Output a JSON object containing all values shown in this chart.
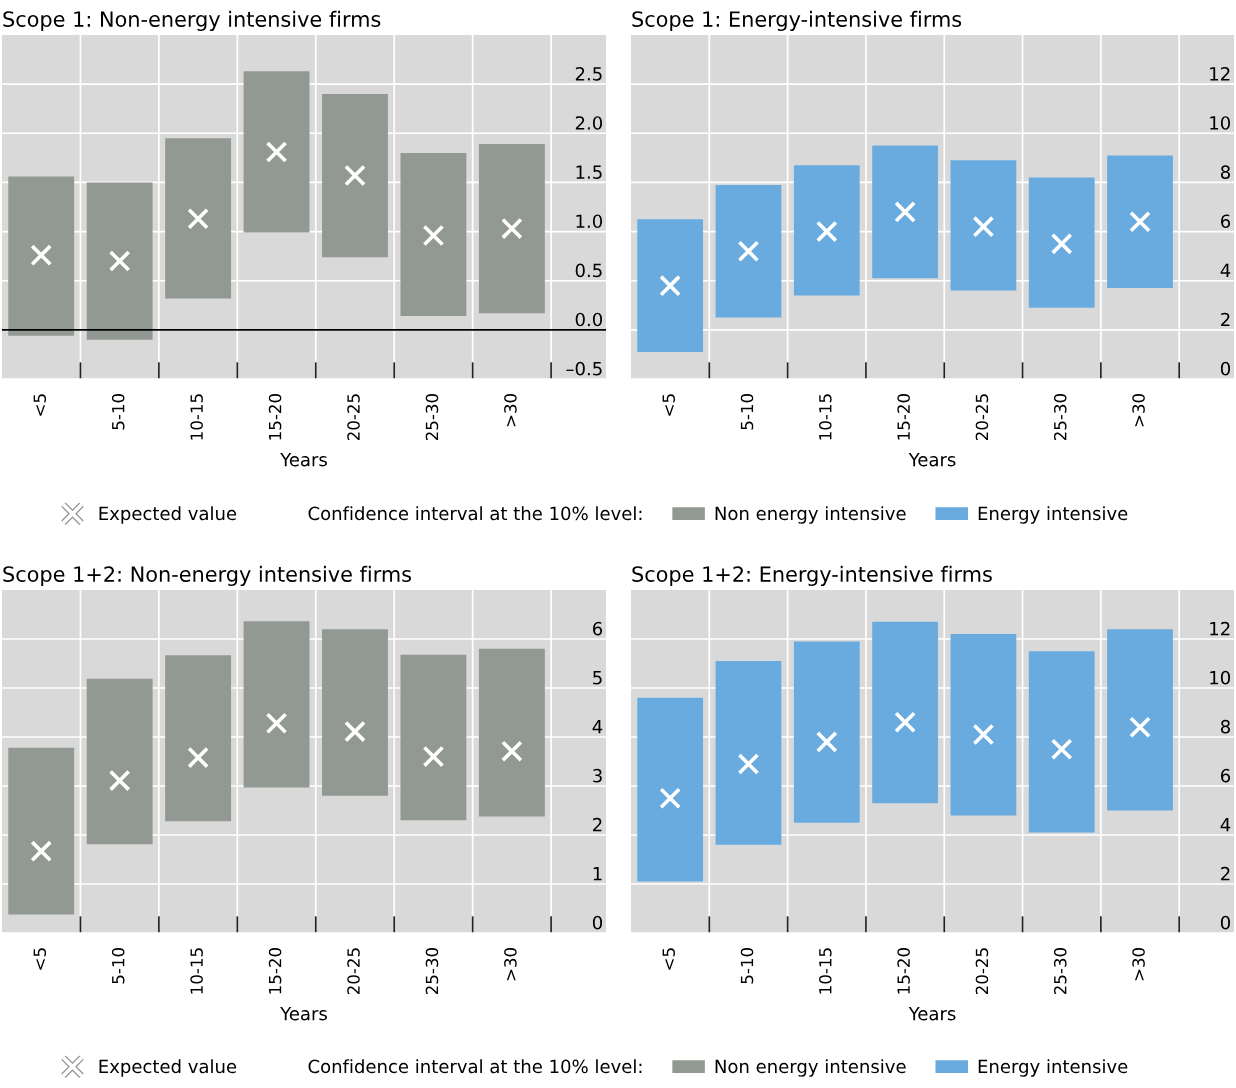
{
  "chart_data": [
    {
      "type": "bar",
      "title": "Scope 1: Non-energy intensive firms",
      "xlabel": "Years",
      "legend_title": "Confidence interval at the 10% level:",
      "categories": [
        "<5",
        "5-10",
        "10-15",
        "15-20",
        "20-25",
        "25-30",
        ">30"
      ],
      "series": [
        {
          "name": "Expected value",
          "type": "scatter",
          "color": "#ffffff",
          "marker": "cross",
          "values": [
            0.76,
            0.7,
            1.13,
            1.81,
            1.57,
            0.96,
            1.03
          ]
        },
        {
          "name": "Non energy intensive",
          "color": "#929892",
          "base": [
            -0.06,
            -0.1,
            0.32,
            0.99,
            0.74,
            0.14,
            0.17
          ],
          "values": [
            1.62,
            1.6,
            1.63,
            1.64,
            1.66,
            1.66,
            1.72
          ]
        }
      ],
      "ylim": [
        -0.5,
        3.0
      ],
      "yticks": [
        {
          "value": -0.5,
          "label": "–0.5"
        },
        {
          "value": 0,
          "label": "0.0"
        },
        0.5,
        {
          "value": 1,
          "label": "1.0"
        },
        1.5,
        {
          "value": 2,
          "label": "2.0"
        },
        2.5
      ],
      "ref_lines": [
        {
          "axis": "y",
          "value": 0,
          "color": "#000000"
        }
      ],
      "grid": true,
      "legend": "bottom"
    },
    {
      "type": "bar",
      "title": "Scope 1: Energy-intensive firms",
      "xlabel": "Years",
      "categories": [
        "<5",
        "5-10",
        "10-15",
        "15-20",
        "20-25",
        "25-30",
        ">30"
      ],
      "series": [
        {
          "type": "scatter",
          "color": "#ffffff",
          "marker": "cross",
          "values": [
            3.8,
            5.2,
            6.0,
            6.8,
            6.2,
            5.5,
            6.4
          ]
        },
        {
          "name": "Energy intensive",
          "color": "#6aabdf",
          "base": [
            1.1,
            2.5,
            3.4,
            4.1,
            3.6,
            2.9,
            3.7
          ],
          "values": [
            5.4,
            5.4,
            5.3,
            5.4,
            5.3,
            5.3,
            5.4
          ]
        }
      ],
      "ylim": [
        0,
        14
      ],
      "yticks": [
        0,
        2,
        4,
        6,
        8,
        10,
        12
      ],
      "grid": true,
      "legend": "bottom"
    },
    {
      "type": "bar",
      "title": "Scope 1+2: Non-energy intensive firms",
      "xlabel": "Years",
      "legend_title": "Confidence interval at the 10% level:",
      "categories": [
        "<5",
        "5-10",
        "10-15",
        "15-20",
        "20-25",
        "25-30",
        ">30"
      ],
      "series": [
        {
          "name": "Expected value",
          "type": "scatter",
          "color": "#ffffff",
          "marker": "cross",
          "values": [
            1.67,
            3.11,
            3.58,
            4.28,
            4.11,
            3.6,
            3.71
          ]
        },
        {
          "name": "Non energy intensive",
          "color": "#929892",
          "base": [
            0.38,
            1.81,
            2.28,
            2.97,
            2.8,
            2.3,
            2.38
          ],
          "values": [
            3.4,
            3.38,
            3.39,
            3.39,
            3.4,
            3.38,
            3.42
          ]
        }
      ],
      "ylim": [
        0,
        7
      ],
      "yticks": [
        0,
        1,
        2,
        3,
        4,
        5,
        6
      ],
      "grid": true,
      "legend": "bottom"
    },
    {
      "type": "bar",
      "title": "Scope 1+2: Energy-intensive firms",
      "xlabel": "Years",
      "categories": [
        "<5",
        "5-10",
        "10-15",
        "15-20",
        "20-25",
        "25-30",
        ">30"
      ],
      "series": [
        {
          "type": "scatter",
          "color": "#ffffff",
          "marker": "cross",
          "values": [
            5.5,
            6.9,
            7.8,
            8.6,
            8.1,
            7.5,
            8.4
          ]
        },
        {
          "name": "Energy intensive",
          "color": "#6aabdf",
          "base": [
            2.1,
            3.6,
            4.5,
            5.3,
            4.8,
            4.1,
            5.0
          ],
          "values": [
            7.5,
            7.5,
            7.4,
            7.4,
            7.4,
            7.4,
            7.4
          ]
        }
      ],
      "ylim": [
        0,
        14
      ],
      "yticks": [
        0,
        2,
        4,
        6,
        8,
        10,
        12
      ],
      "grid": true,
      "legend": "bottom"
    }
  ]
}
